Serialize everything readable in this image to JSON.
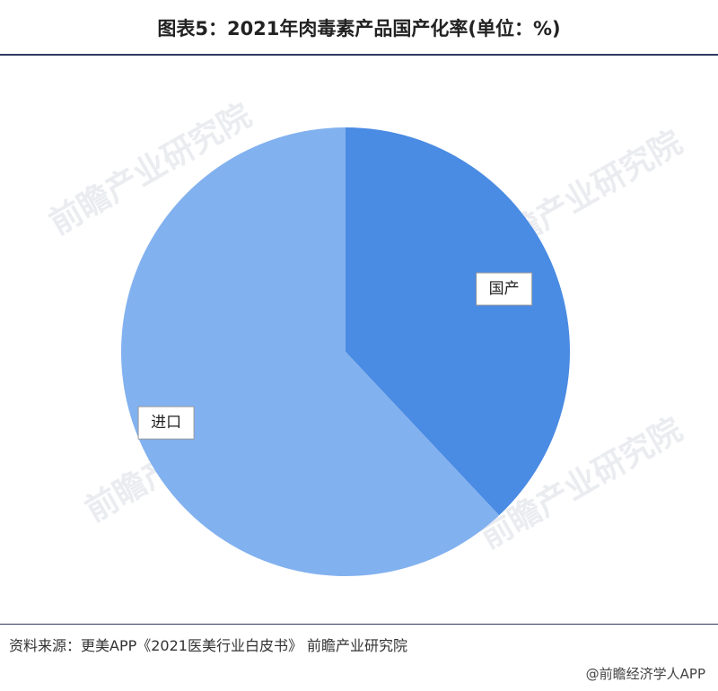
{
  "title": "图表5：2021年肉毒素产品国产化率(单位：%)",
  "source": "资料来源：更美APP《2021医美行业白皮书》 前瞻产业研究院",
  "credit": "@前瞻经济学人APP",
  "watermark": "前瞻产业研究院",
  "colors": {
    "domestic": "#4a8be3",
    "imported": "#82b1ef",
    "background": "#ffffff",
    "divider": "#2f3a63"
  },
  "chart_data": {
    "type": "pie",
    "title": "图表5：2021年肉毒素产品国产化率(单位：%)",
    "categories": [
      "国产",
      "进口"
    ],
    "values": [
      38,
      62
    ],
    "legend": "none"
  }
}
